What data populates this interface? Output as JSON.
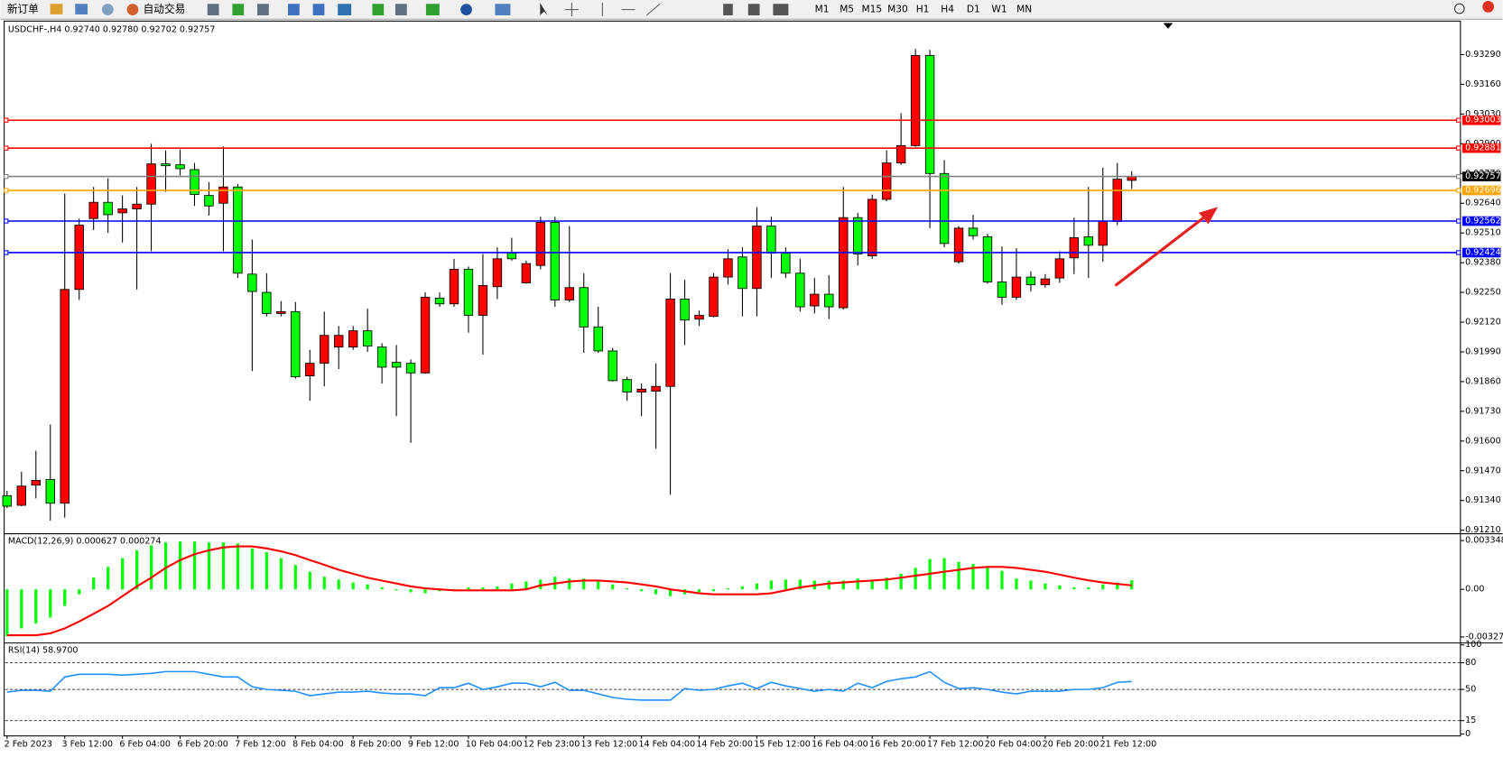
{
  "toolbar": {
    "new_order": "新订单",
    "auto_trading": "自动交易",
    "timeframes": [
      "M1",
      "M5",
      "M15",
      "M30",
      "H1",
      "H4",
      "D1",
      "W1",
      "MN"
    ]
  },
  "chart_data": [
    {
      "type": "candlestick",
      "header": "USDCHF-,H4  0.92740 0.92780 0.92702 0.92757",
      "up_color": "#ff0000",
      "down_color": "#00ff00",
      "categories": [
        "2 Feb 2023",
        null,
        null,
        null,
        "3 Feb 12:00",
        null,
        null,
        null,
        "6 Feb 04:00",
        null,
        null,
        null,
        "6 Feb 20:00",
        null,
        null,
        null,
        "7 Feb 12:00",
        null,
        null,
        null,
        "8 Feb 04:00",
        null,
        null,
        null,
        "8 Feb 20:00",
        null,
        null,
        null,
        "9 Feb 12:00",
        null,
        null,
        null,
        "10 Feb 04:00",
        null,
        null,
        null,
        "12 Feb 23:00",
        null,
        null,
        null,
        "13 Feb 12:00",
        null,
        null,
        null,
        "14 Feb 04:00",
        null,
        null,
        null,
        "14 Feb 20:00",
        null,
        null,
        null,
        "15 Feb 12:00",
        null,
        null,
        null,
        "16 Feb 04:00",
        null,
        null,
        null,
        "16 Feb 20:00",
        null,
        null,
        null,
        "17 Feb 12:00",
        null,
        null,
        null,
        "20 Feb 04:00",
        null,
        null,
        null,
        "20 Feb 20:00",
        null,
        null,
        null,
        "21 Feb 12:00",
        null,
        null
      ],
      "open": [
        0.91361,
        0.91319,
        0.91407,
        0.91432,
        0.91328,
        0.92263,
        0.92573,
        0.92644,
        0.92598,
        0.92615,
        0.92636,
        0.92812,
        0.92808,
        0.92787,
        0.92674,
        0.9264,
        0.92711,
        0.9233,
        0.9225,
        0.92158,
        0.92166,
        0.91885,
        0.9194,
        0.92011,
        0.92011,
        0.92082,
        0.92011,
        0.91944,
        0.9194,
        0.91898,
        0.92225,
        0.922,
        0.92351,
        0.9215,
        0.92275,
        0.92422,
        0.92292,
        0.92368,
        0.92556,
        0.92217,
        0.92271,
        0.92099,
        0.91994,
        0.91869,
        0.91814,
        0.91818,
        0.91839,
        0.92221,
        0.92133,
        0.92145,
        0.92317,
        0.92405,
        0.92267,
        0.9254,
        0.92422,
        0.92334,
        0.92191,
        0.92242,
        0.92183,
        0.92577,
        0.9241,
        0.92657,
        0.92816,
        0.92892,
        0.93286,
        0.9277,
        0.92384,
        0.92531,
        0.92493,
        0.92296,
        0.92229,
        0.92317,
        0.92284,
        0.92313,
        0.92401,
        0.92493,
        0.92456,
        0.9256,
        0.9274
      ],
      "high": [
        0.91382,
        0.91466,
        0.91558,
        0.91672,
        0.92682,
        0.92573,
        0.92711,
        0.92749,
        0.92674,
        0.92711,
        0.929,
        0.92871,
        0.92875,
        0.92816,
        0.92732,
        0.92888,
        0.92724,
        0.92481,
        0.92334,
        0.92212,
        0.92208,
        0.91999,
        0.92166,
        0.92103,
        0.92103,
        0.92179,
        0.92028,
        0.9202,
        0.91957,
        0.9225,
        0.9225,
        0.92397,
        0.92363,
        0.92418,
        0.92447,
        0.92489,
        0.92389,
        0.92581,
        0.92581,
        0.9254,
        0.92334,
        0.92187,
        0.92007,
        0.91881,
        0.91852,
        0.9194,
        0.92334,
        0.92305,
        0.9217,
        0.92334,
        0.92439,
        0.92447,
        0.92623,
        0.92581,
        0.92447,
        0.92397,
        0.92313,
        0.92326,
        0.92711,
        0.92598,
        0.92678,
        0.92871,
        0.93034,
        0.93315,
        0.93311,
        0.92829,
        0.9254,
        0.9259,
        0.92506,
        0.92451,
        0.92443,
        0.92342,
        0.9233,
        0.9243,
        0.92577,
        0.92711,
        0.92795,
        0.92816,
        0.9278
      ],
      "low": [
        0.91307,
        0.91315,
        0.91349,
        0.91252,
        0.91265,
        0.92217,
        0.92523,
        0.9251,
        0.92468,
        0.92263,
        0.9243,
        0.9269,
        0.92762,
        0.92628,
        0.92586,
        0.9243,
        0.92313,
        0.91906,
        0.92145,
        0.92145,
        0.91873,
        0.91776,
        0.91839,
        0.91915,
        0.91999,
        0.9199,
        0.91852,
        0.91709,
        0.91592,
        0.91894,
        0.92187,
        0.92187,
        0.92074,
        0.91978,
        0.92221,
        0.92389,
        0.92288,
        0.92351,
        0.92187,
        0.92208,
        0.91986,
        0.91986,
        0.9186,
        0.91776,
        0.91709,
        0.91567,
        0.91365,
        0.9202,
        0.92103,
        0.92141,
        0.92284,
        0.92145,
        0.92145,
        0.92313,
        0.92313,
        0.92166,
        0.92158,
        0.92133,
        0.92175,
        0.92368,
        0.92397,
        0.92649,
        0.92808,
        0.92887,
        0.92531,
        0.92447,
        0.92376,
        0.92481,
        0.92288,
        0.92196,
        0.92217,
        0.92254,
        0.92271,
        0.92292,
        0.9233,
        0.92313,
        0.92384,
        0.92544,
        0.92702
      ],
      "close": [
        0.91315,
        0.91403,
        0.91428,
        0.91328,
        0.92263,
        0.92544,
        0.92644,
        0.9259,
        0.92615,
        0.92636,
        0.92812,
        0.92804,
        0.92791,
        0.92678,
        0.92628,
        0.92711,
        0.92334,
        0.92254,
        0.92158,
        0.92166,
        0.91881,
        0.9194,
        0.92062,
        0.92062,
        0.92082,
        0.92015,
        0.91923,
        0.91923,
        0.91898,
        0.92229,
        0.922,
        0.92351,
        0.9215,
        0.9228,
        0.92397,
        0.92397,
        0.92376,
        0.92556,
        0.92217,
        0.92271,
        0.92099,
        0.91994,
        0.91864,
        0.91814,
        0.91827,
        0.91839,
        0.92221,
        0.92129,
        0.9215,
        0.92317,
        0.92397,
        0.92267,
        0.9254,
        0.92422,
        0.92334,
        0.92187,
        0.92242,
        0.92187,
        0.92577,
        0.92418,
        0.92657,
        0.92816,
        0.92892,
        0.93286,
        0.9277,
        0.92464,
        0.92531,
        0.92498,
        0.92296,
        0.92229,
        0.92317,
        0.92284,
        0.92309,
        0.92397,
        0.92489,
        0.92456,
        0.9256,
        0.92745,
        0.92757
      ],
      "ylim": [
        0.91203,
        0.93424
      ],
      "yticks": [
        {
          "value": 0.9329,
          "label": "0.93290"
        },
        {
          "value": 0.9316,
          "label": "0.93160"
        },
        {
          "value": 0.9303,
          "label": "0.93030"
        },
        {
          "value": 0.929,
          "label": "0.92900"
        },
        {
          "value": 0.9277,
          "label": "0.92770"
        },
        {
          "value": 0.9264,
          "label": "0.92640"
        },
        {
          "value": 0.9251,
          "label": "0.92510"
        },
        {
          "value": 0.9238,
          "label": "0.92380"
        },
        {
          "value": 0.9225,
          "label": "0.92250"
        },
        {
          "value": 0.9212,
          "label": "0.92120"
        },
        {
          "value": 0.9199,
          "label": "0.91990"
        },
        {
          "value": 0.9186,
          "label": "0.91860"
        },
        {
          "value": 0.9173,
          "label": "0.91730"
        },
        {
          "value": 0.916,
          "label": "0.91600"
        },
        {
          "value": 0.9147,
          "label": "0.91470"
        },
        {
          "value": 0.9134,
          "label": "0.91340"
        },
        {
          "value": 0.9121,
          "label": "0.91210"
        }
      ],
      "levels": [
        {
          "value": 0.93003,
          "color": "#ff0000",
          "label_fill": "#ff0000"
        },
        {
          "value": 0.92881,
          "color": "#ff0000",
          "label_fill": "#ff0000"
        },
        {
          "value": 0.92757,
          "color": "#808080",
          "label_fill": "#000000"
        },
        {
          "value": 0.92696,
          "color": "#ffa500",
          "label_fill": "#ffa500"
        },
        {
          "value": 0.92562,
          "color": "#0000ff",
          "label_fill": "#0000ff"
        },
        {
          "value": 0.92424,
          "color": "#0000ff",
          "label_fill": "#0000ff"
        }
      ]
    },
    {
      "type": "macd",
      "header": "MACD(12,26,9) 0.000627 0.000274",
      "series": [
        {
          "style": "histogram",
          "color": "#00ff00",
          "values": [
            -0.00322,
            -0.00268,
            -0.00235,
            -0.00194,
            -0.00114,
            -0.00034,
            0.0008,
            0.00154,
            0.00214,
            0.00268,
            0.00302,
            0.00322,
            0.00328,
            0.00328,
            0.00322,
            0.00322,
            0.00315,
            0.00281,
            0.00255,
            0.00214,
            0.00168,
            0.00121,
            0.00087,
            0.00067,
            0.00047,
            0.00034,
            0.00013,
            -7e-05,
            -0.0002,
            -0.00027,
            -0.00013,
            3e-05,
            0.00013,
            0.00013,
            0.0002,
            0.0004,
            0.00054,
            0.00067,
            0.00087,
            0.00074,
            0.00074,
            0.0006,
            0.00034,
            7e-05,
            -0.00013,
            -0.00034,
            -0.00047,
            -0.00034,
            -0.0002,
            -0.00013,
            7e-05,
            0.0002,
            0.0004,
            0.0006,
            0.00067,
            0.00067,
            0.0006,
            0.0006,
            0.0006,
            0.00074,
            0.00067,
            0.0008,
            0.00107,
            0.00147,
            0.00208,
            0.00214,
            0.00188,
            0.00174,
            0.00161,
            0.00127,
            0.00074,
            0.0006,
            0.0004,
            0.00027,
            0.00013,
            0.00013,
            0.00034,
            0.00047,
            0.000627
          ]
        },
        {
          "style": "line",
          "color": "#ff0000",
          "values": [
            -0.00315,
            -0.00315,
            -0.00315,
            -0.00302,
            -0.00268,
            -0.00221,
            -0.00168,
            -0.00114,
            -0.00047,
            0.0002,
            0.0008,
            0.00147,
            0.00201,
            0.00241,
            0.00268,
            0.00288,
            0.00295,
            0.00295,
            0.00281,
            0.00261,
            0.00235,
            0.00201,
            0.00168,
            0.00134,
            0.00107,
            0.0008,
            0.0006,
            0.0004,
            0.0002,
            7e-05,
            0,
            -7e-05,
            -7e-05,
            -7e-05,
            -7e-05,
            -7e-05,
            0,
            0.00027,
            0.0004,
            0.00054,
            0.0006,
            0.0006,
            0.00054,
            0.00047,
            0.00034,
            0.0002,
            0,
            -0.00013,
            -0.00027,
            -0.00034,
            -0.00034,
            -0.00034,
            -0.00034,
            -0.00027,
            -7e-05,
            0.00013,
            0.00027,
            0.0004,
            0.00047,
            0.00054,
            0.0006,
            0.00067,
            0.0008,
            0.00094,
            0.00107,
            0.00121,
            0.00134,
            0.00147,
            0.00154,
            0.00154,
            0.00147,
            0.00134,
            0.00121,
            0.00101,
            0.0008,
            0.00062,
            0.00047,
            0.00037,
            0.000274
          ]
        }
      ],
      "ylim": [
        -0.00355,
        0.003685
      ],
      "yticks": [
        0.003348,
        {
          "value": 0,
          "label": "0.00"
        },
        -0.00327
      ]
    },
    {
      "type": "line",
      "header": "RSI(14) 58.9700",
      "series": [
        {
          "color": "#1e90ff",
          "values": [
            47,
            49,
            49,
            48,
            64,
            67,
            67,
            67,
            66,
            67,
            68,
            70,
            70,
            70,
            67,
            64,
            64,
            53,
            50,
            49,
            48,
            43,
            45,
            47,
            47,
            48,
            46,
            45,
            45,
            43,
            52,
            52,
            57,
            50,
            53,
            57,
            57,
            53,
            58,
            49,
            49,
            45,
            41,
            39,
            38,
            38,
            38,
            51,
            49,
            50,
            54,
            57,
            51,
            58,
            54,
            51,
            48,
            50,
            48,
            57,
            52,
            59,
            62,
            64,
            70,
            58,
            51,
            52,
            50,
            47,
            45,
            48,
            48,
            48,
            50,
            50,
            52,
            58,
            58.97
          ]
        }
      ],
      "ylim": [
        0,
        100
      ],
      "yticks": [
        100,
        80,
        50,
        15,
        0
      ],
      "levels": [
        80,
        50,
        15
      ]
    }
  ]
}
